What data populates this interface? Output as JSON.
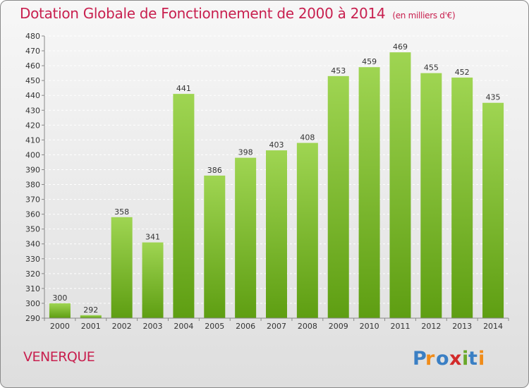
{
  "header": {
    "title": "Dotation Globale de Fonctionnement de 2000 à 2014",
    "unit": "(en milliers d'€)"
  },
  "footer": {
    "commune": "VENERQUE",
    "logo_text": "Proxiti"
  },
  "colors": {
    "accent": "#c8204f",
    "bar_top": "#9fd552",
    "bar_bottom": "#5e9e12",
    "grid": "#ffffff"
  },
  "chart_data": {
    "type": "bar",
    "title": "Dotation Globale de Fonctionnement de 2000 à 2014",
    "subtitle": "(en milliers d'€)",
    "categories": [
      "2000",
      "2001",
      "2002",
      "2003",
      "2004",
      "2005",
      "2006",
      "2007",
      "2008",
      "2009",
      "2010",
      "2011",
      "2012",
      "2013",
      "2014"
    ],
    "values": [
      300,
      292,
      358,
      341,
      441,
      386,
      398,
      403,
      408,
      453,
      459,
      469,
      455,
      452,
      435
    ],
    "ylim": [
      290,
      480
    ],
    "yticks": [
      290,
      300,
      310,
      320,
      330,
      340,
      350,
      360,
      370,
      380,
      390,
      400,
      410,
      420,
      430,
      440,
      450,
      460,
      470,
      480
    ],
    "grid": "dashed horizontal",
    "xlabel": "",
    "ylabel": ""
  }
}
